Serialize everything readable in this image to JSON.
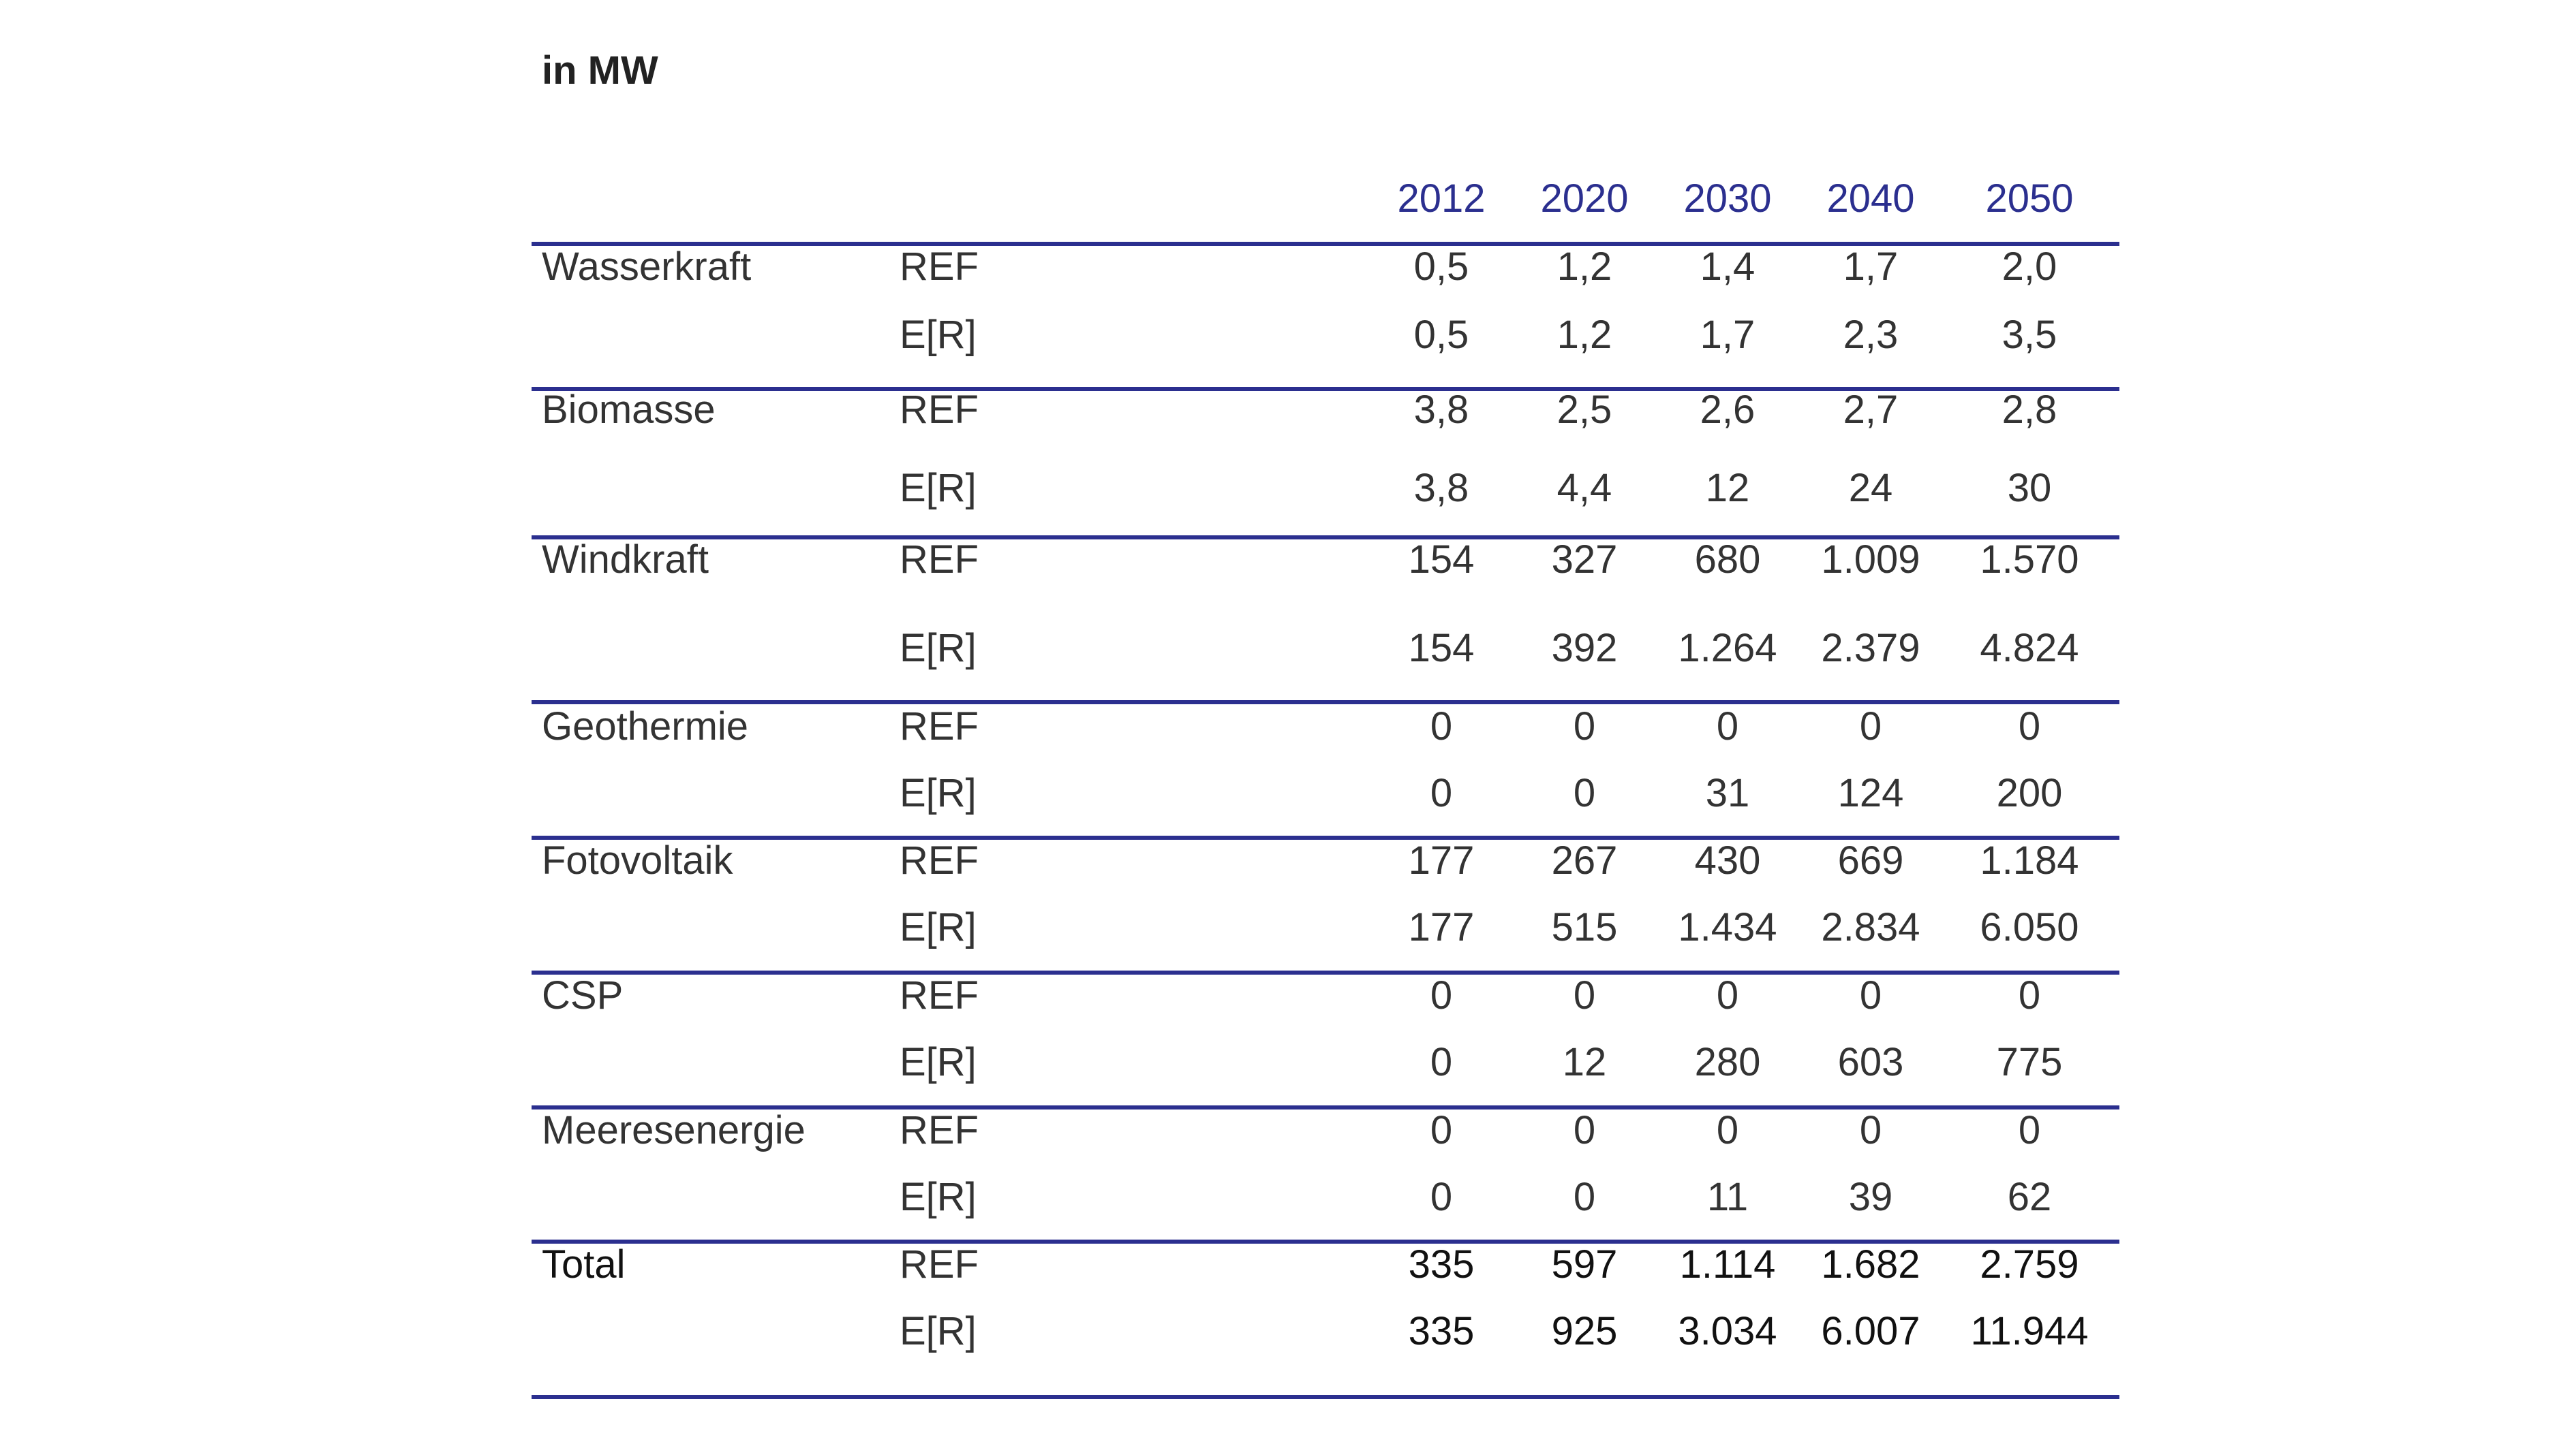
{
  "unit_label": "in MW",
  "years": [
    "2012",
    "2020",
    "2030",
    "2040",
    "2050"
  ],
  "rows": [
    {
      "category": "Wasserkraft",
      "ref": [
        "0,5",
        "1,2",
        "1,4",
        "1,7",
        "2,0"
      ],
      "er": [
        "0,5",
        "1,2",
        "1,7",
        "2,3",
        "3,5"
      ]
    },
    {
      "category": "Biomasse",
      "ref": [
        "3,8",
        "2,5",
        "2,6",
        "2,7",
        "2,8"
      ],
      "er": [
        "3,8",
        "4,4",
        "12",
        "24",
        "30"
      ]
    },
    {
      "category": "Windkraft",
      "ref": [
        "154",
        "327",
        "680",
        "1.009",
        "1.570"
      ],
      "er": [
        "154",
        "392",
        "1.264",
        "2.379",
        "4.824"
      ]
    },
    {
      "category": "Geothermie",
      "ref": [
        "0",
        "0",
        "0",
        "0",
        "0"
      ],
      "er": [
        "0",
        "0",
        "31",
        "124",
        "200"
      ]
    },
    {
      "category": "Fotovoltaik",
      "ref": [
        "177",
        "267",
        "430",
        "669",
        "1.184"
      ],
      "er": [
        "177",
        "515",
        "1.434",
        "2.834",
        "6.050"
      ]
    },
    {
      "category": "CSP",
      "ref": [
        "0",
        "0",
        "0",
        "0",
        "0"
      ],
      "er": [
        "0",
        "12",
        "280",
        "603",
        "775"
      ]
    },
    {
      "category": "Meeresenergie",
      "ref": [
        "0",
        "0",
        "0",
        "0",
        "0"
      ],
      "er": [
        "0",
        "0",
        "11",
        "39",
        "62"
      ]
    },
    {
      "category": "Total",
      "ref": [
        "335",
        "597",
        "1.114",
        "1.682",
        "2.759"
      ],
      "er": [
        "335",
        "925",
        "3.034",
        "6.007",
        "11.944"
      ]
    }
  ],
  "scenario_labels": {
    "ref": "REF",
    "er": "E[R]"
  }
}
